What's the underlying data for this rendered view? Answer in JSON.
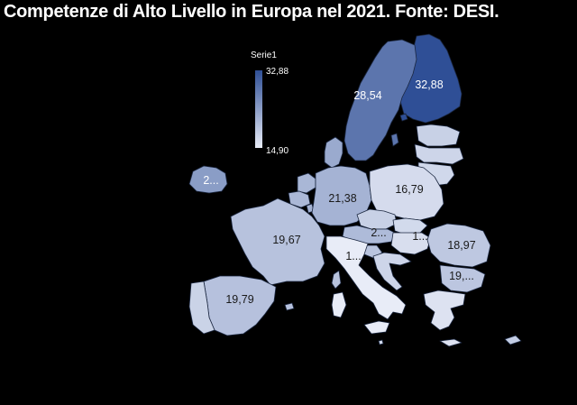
{
  "title": "Competenze di Alto Livello in Europa nel 2021. Fonte: DESI.",
  "legend": {
    "series_name": "Serie1",
    "max_label": "32,88",
    "min_label": "14,90",
    "max_value": 32.88,
    "min_value": 14.9
  },
  "colors": {
    "low": "#e8ecf7",
    "high": "#2f4f96",
    "background": "#000000"
  },
  "regions": [
    {
      "id": "finland",
      "label": "32,88",
      "value": 32.88
    },
    {
      "id": "sweden",
      "label": "28,54",
      "value": 28.54
    },
    {
      "id": "ireland",
      "label": "2...",
      "value": 24.0
    },
    {
      "id": "germany",
      "label": "21,38",
      "value": 21.38
    },
    {
      "id": "poland",
      "label": "16,79",
      "value": 16.79
    },
    {
      "id": "france",
      "label": "19,67",
      "value": 19.67
    },
    {
      "id": "spain",
      "label": "19,79",
      "value": 19.79
    },
    {
      "id": "austria",
      "label": "2...",
      "value": 20.5
    },
    {
      "id": "hungary",
      "label": "1...",
      "value": 16.5
    },
    {
      "id": "romania",
      "label": "18,97",
      "value": 18.97
    },
    {
      "id": "bulgaria",
      "label": "19,...",
      "value": 19.2
    },
    {
      "id": "italy",
      "label": "1...",
      "value": 14.9
    },
    {
      "id": "denmark",
      "label": "",
      "value": 22.5
    },
    {
      "id": "norway-gap",
      "label": "",
      "value": null
    },
    {
      "id": "estonia",
      "label": "",
      "value": 18.0
    },
    {
      "id": "latvia",
      "label": "",
      "value": 17.5
    },
    {
      "id": "lithuania",
      "label": "",
      "value": 17.2
    },
    {
      "id": "netherlands",
      "label": "",
      "value": 21.0
    },
    {
      "id": "belgium",
      "label": "",
      "value": 20.8
    },
    {
      "id": "luxembourg",
      "label": "",
      "value": 21.5
    },
    {
      "id": "czechia",
      "label": "",
      "value": 18.0
    },
    {
      "id": "slovakia",
      "label": "",
      "value": 17.0
    },
    {
      "id": "slovenia",
      "label": "",
      "value": 19.5
    },
    {
      "id": "croatia",
      "label": "",
      "value": 17.5
    },
    {
      "id": "portugal",
      "label": "",
      "value": 17.8
    },
    {
      "id": "greece",
      "label": "",
      "value": 16.0
    },
    {
      "id": "corsica",
      "label": "",
      "value": 19.67
    },
    {
      "id": "sardinia",
      "label": "",
      "value": 14.9
    },
    {
      "id": "sicily",
      "label": "",
      "value": 14.9
    },
    {
      "id": "cyprus",
      "label": "",
      "value": 18.5
    },
    {
      "id": "malta",
      "label": "",
      "value": 17.0
    },
    {
      "id": "balearic",
      "label": "",
      "value": 19.79
    },
    {
      "id": "gotland",
      "label": "",
      "value": 28.54
    },
    {
      "id": "aland",
      "label": "",
      "value": 32.88
    },
    {
      "id": "crete",
      "label": "",
      "value": 16.0
    }
  ]
}
